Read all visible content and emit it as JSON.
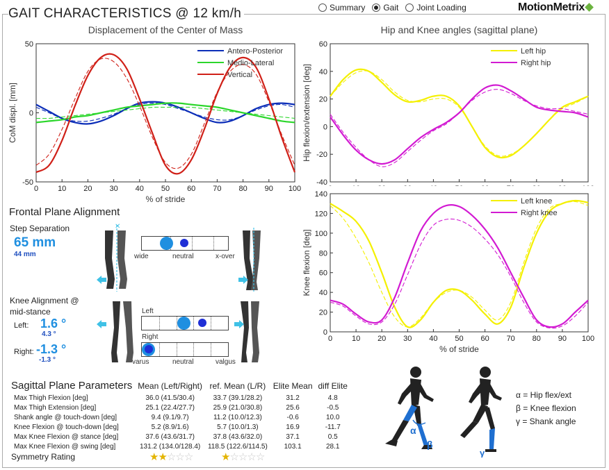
{
  "header": {
    "title": "GAIT CHARACTERISTICS @ 12 km/h",
    "logo": "MotionMetrix",
    "views": [
      {
        "label": "Summary",
        "selected": false
      },
      {
        "label": "Gait",
        "selected": true
      },
      {
        "label": "Joint Loading",
        "selected": false
      }
    ]
  },
  "colors": {
    "accent": "#1f8fe0",
    "blue": "#0b2db8",
    "green": "#2bd62b",
    "red": "#d02018",
    "yellow": "#f4f000",
    "magenta": "#d21ad2"
  },
  "chart_data": [
    {
      "type": "line",
      "title": "Displacement of the Center of Mass",
      "xlabel": "% of stride",
      "ylabel": "CoM displ. [mm]",
      "xlim": [
        0,
        100
      ],
      "ylim": [
        -50,
        50
      ],
      "xticks": [
        "0",
        "10",
        "20",
        "30",
        "40",
        "50",
        "60",
        "70",
        "80",
        "90",
        "100"
      ],
      "yticks": [
        "50",
        "0",
        "-50"
      ],
      "legend": "top-right",
      "x": [
        0,
        5,
        10,
        15,
        20,
        25,
        30,
        35,
        40,
        45,
        50,
        55,
        60,
        65,
        70,
        75,
        80,
        85,
        90,
        95,
        100
      ],
      "series": [
        {
          "name": "Antero-Posterior",
          "color": "#0b2db8",
          "values": [
            6,
            1,
            -4,
            -7,
            -8,
            -6,
            -2,
            3,
            7,
            8,
            7,
            4,
            0,
            -4,
            -7,
            -6,
            -2,
            3,
            6,
            7,
            6
          ]
        },
        {
          "name": "Medio-Lateral",
          "color": "#2bd62b",
          "values": [
            -7,
            -6,
            -5,
            -3,
            -2,
            0,
            2,
            4,
            5,
            6,
            7,
            7,
            6,
            5,
            4,
            2,
            0,
            -2,
            -4,
            -6,
            -7
          ]
        },
        {
          "name": "Vertical",
          "color": "#d02018",
          "values": [
            -43,
            -38,
            -20,
            5,
            27,
            40,
            42,
            32,
            10,
            -15,
            -38,
            -44,
            -34,
            -12,
            14,
            33,
            40,
            33,
            10,
            -18,
            -43
          ]
        }
      ],
      "reference_values": {
        "Antero-Posterior": [
          4,
          0,
          -4,
          -6,
          -6,
          -4,
          -1,
          3,
          6,
          7,
          6,
          3,
          0,
          -3,
          -5,
          -5,
          -2,
          2,
          5,
          6,
          4
        ],
        "Medio-Lateral": [
          -4,
          -4,
          -3,
          -2,
          -1,
          0,
          1,
          2,
          3,
          4,
          4,
          4,
          4,
          3,
          2,
          1,
          0,
          -1,
          -2,
          -3,
          -4
        ],
        "Vertical": [
          -38,
          -30,
          -12,
          10,
          30,
          39,
          37,
          25,
          5,
          -18,
          -36,
          -40,
          -30,
          -8,
          15,
          30,
          35,
          28,
          8,
          -16,
          -38
        ]
      }
    },
    {
      "type": "line",
      "title": "Hip and Knee angles (sagittal plane)",
      "xlabel": "",
      "ylabel": "Hip flexion/extension [deg]",
      "xlim": [
        0,
        100
      ],
      "ylim": [
        -40,
        60
      ],
      "xticks": [
        "0",
        "10",
        "20",
        "30",
        "40",
        "50",
        "60",
        "70",
        "80",
        "90",
        "100"
      ],
      "yticks": [
        "60",
        "40",
        "20",
        "0",
        "-20",
        "-40"
      ],
      "legend": "top-right",
      "x": [
        0,
        5,
        10,
        15,
        20,
        25,
        30,
        35,
        40,
        45,
        50,
        55,
        60,
        65,
        70,
        75,
        80,
        85,
        90,
        95,
        100
      ],
      "series": [
        {
          "name": "Left hip",
          "color": "#f4f000",
          "values": [
            22,
            34,
            41,
            40,
            32,
            23,
            18,
            19,
            22,
            22,
            15,
            0,
            -15,
            -22,
            -21,
            -14,
            -5,
            5,
            14,
            18,
            22
          ]
        },
        {
          "name": "Right hip",
          "color": "#d21ad2",
          "values": [
            7,
            -6,
            -17,
            -24,
            -27,
            -24,
            -16,
            -8,
            -2,
            3,
            10,
            20,
            28,
            30,
            26,
            20,
            14,
            12,
            11,
            10,
            7
          ]
        }
      ],
      "reference_values": {
        "Left hip": [
          22,
          32,
          39,
          40,
          34,
          25,
          19,
          18,
          20,
          20,
          14,
          0,
          -14,
          -21,
          -20,
          -14,
          -5,
          5,
          13,
          17,
          22
        ],
        "Right hip": [
          9,
          -4,
          -15,
          -24,
          -29,
          -26,
          -18,
          -10,
          -3,
          2,
          10,
          19,
          25,
          27,
          24,
          19,
          15,
          13,
          13,
          11,
          9
        ]
      }
    },
    {
      "type": "line",
      "title": "",
      "xlabel": "% of stride",
      "ylabel": "Knee flexion [deg]",
      "xlim": [
        0,
        100
      ],
      "ylim": [
        0,
        140
      ],
      "xticks": [
        "0",
        "10",
        "20",
        "30",
        "40",
        "50",
        "60",
        "70",
        "80",
        "90",
        "100"
      ],
      "yticks": [
        "140",
        "120",
        "100",
        "80",
        "60",
        "40",
        "20",
        "0"
      ],
      "legend": "top-right",
      "x": [
        0,
        5,
        10,
        15,
        20,
        25,
        30,
        35,
        40,
        45,
        50,
        55,
        60,
        65,
        70,
        75,
        80,
        85,
        90,
        95,
        100
      ],
      "series": [
        {
          "name": "Left knee",
          "color": "#f4f000",
          "values": [
            130,
            122,
            112,
            92,
            60,
            25,
            5,
            12,
            30,
            42,
            42,
            32,
            18,
            8,
            25,
            65,
            100,
            122,
            130,
            133,
            131
          ]
        },
        {
          "name": "Right knee",
          "color": "#d21ad2",
          "values": [
            32,
            28,
            18,
            10,
            12,
            35,
            70,
            102,
            120,
            128,
            127,
            118,
            104,
            85,
            60,
            35,
            12,
            5,
            8,
            20,
            32
          ]
        }
      ],
      "reference_values": {
        "Left knee": [
          128,
          115,
          95,
          70,
          40,
          15,
          5,
          14,
          30,
          40,
          42,
          35,
          22,
          12,
          30,
          70,
          105,
          125,
          130,
          132,
          128
        ],
        "Right knee": [
          30,
          26,
          16,
          8,
          10,
          28,
          58,
          88,
          108,
          114,
          113,
          106,
          94,
          78,
          56,
          30,
          10,
          4,
          6,
          16,
          30
        ]
      }
    }
  ],
  "frontal": {
    "title": "Frontal Plane Alignment",
    "step_separation": {
      "label": "Step Separation",
      "value": "65 mm",
      "reference": "44 mm",
      "scale_labels": [
        "wide",
        "neutral",
        "x-over"
      ],
      "athlete_position": 0.29,
      "reference_position": 0.49
    },
    "knee": {
      "label_line1": "Knee Alignment @",
      "label_line2": "mid-stance",
      "left_label": "Left:",
      "left_value": "1.6 °",
      "left_reference": "4.3 °",
      "right_label": "Right:",
      "right_value": "-1.3 °",
      "right_reference": "-1.3 °",
      "scale_left_caption": "Left",
      "scale_right_caption": "Right",
      "scale_labels": [
        "varus",
        "neutral",
        "valgus"
      ],
      "left_athlete_position": 0.49,
      "left_reference_position": 0.7,
      "right_athlete_position": 0.08,
      "right_reference_position": 0.08
    }
  },
  "sagittal": {
    "title": "Sagittal Plane Parameters",
    "columns": [
      "Mean (Left/Right)",
      "ref. Mean (L/R)",
      "Elite Mean",
      "diff Elite"
    ],
    "rows": [
      {
        "name": "Max Thigh Flexion [deg]",
        "mean": "36.0 (41.5/30.4)",
        "ref": "33.7 (39.1/28.2)",
        "elite": "31.2",
        "diff": "4.8"
      },
      {
        "name": "Max Thigh Extension [deg]",
        "mean": "25.1 (22.4/27.7)",
        "ref": "25.9 (21.0/30.8)",
        "elite": "25.6",
        "diff": "-0.5"
      },
      {
        "name": "Shank angle @ touch-down [deg]",
        "mean": "9.4 (9.1/9.7)",
        "ref": "11.2 (10.0/12.3)",
        "elite": "-0.6",
        "diff": "10.0"
      },
      {
        "name": "Knee Flexion @ touch-down [deg]",
        "mean": "5.2 (8.9/1.6)",
        "ref": "5.7 (10.0/1.3)",
        "elite": "16.9",
        "diff": "-11.7"
      },
      {
        "name": "Max Knee Flexion @ stance [deg]",
        "mean": "37.6 (43.6/31.7)",
        "ref": "37.8 (43.6/32.0)",
        "elite": "37.1",
        "diff": "0.5"
      },
      {
        "name": "Max Knee Flexion @ swing [deg]",
        "mean": "131.2 (134.0/128.4)",
        "ref": "118.5 (122.6/114.5)",
        "elite": "103.1",
        "diff": "28.1"
      }
    ],
    "symmetry_label": "Symmetry Rating",
    "symmetry_rating": 2,
    "symmetry_reference_rating": 1,
    "symmetry_max": 5
  },
  "angle_legend": {
    "alpha": "α = Hip flex/ext",
    "beta": "β = Knee flexion",
    "gamma": "γ = Shank angle",
    "alpha_symbol": "α",
    "beta_symbol": "β",
    "gamma_symbol": "γ"
  }
}
